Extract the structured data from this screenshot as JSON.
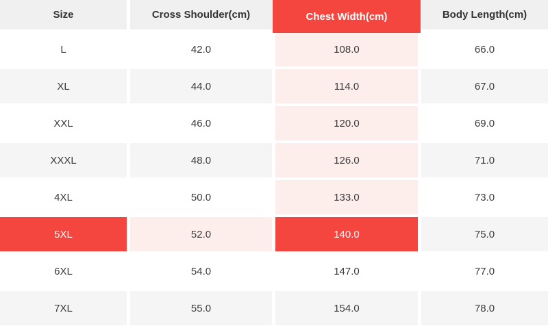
{
  "table": {
    "title": "garment-size-chart",
    "columns": [
      {
        "label": "Size",
        "state": "normal"
      },
      {
        "label": "Cross Shoulder(cm)",
        "state": "normal"
      },
      {
        "label": "Chest Width(cm)",
        "state": "selected"
      },
      {
        "label": "Body Length(cm)",
        "state": "normal"
      }
    ],
    "rows": [
      {
        "cells": [
          "L",
          "42.0",
          "108.0",
          "66.0"
        ],
        "cell_states": [
          "normal",
          "normal",
          "pink",
          "normal"
        ]
      },
      {
        "cells": [
          "XL",
          "44.0",
          "114.0",
          "67.0"
        ],
        "cell_states": [
          "normal",
          "normal",
          "pink",
          "normal"
        ]
      },
      {
        "cells": [
          "XXL",
          "46.0",
          "120.0",
          "69.0"
        ],
        "cell_states": [
          "normal",
          "normal",
          "pink",
          "normal"
        ]
      },
      {
        "cells": [
          "XXXL",
          "48.0",
          "126.0",
          "71.0"
        ],
        "cell_states": [
          "normal",
          "normal",
          "pink",
          "normal"
        ]
      },
      {
        "cells": [
          "4XL",
          "50.0",
          "133.0",
          "73.0"
        ],
        "cell_states": [
          "normal",
          "normal",
          "pink",
          "normal"
        ]
      },
      {
        "cells": [
          "5XL",
          "52.0",
          "140.0",
          "75.0"
        ],
        "cell_states": [
          "selected",
          "pink",
          "selected",
          "normal"
        ]
      },
      {
        "cells": [
          "6XL",
          "54.0",
          "147.0",
          "77.0"
        ],
        "cell_states": [
          "normal",
          "normal",
          "normal",
          "normal"
        ]
      },
      {
        "cells": [
          "7XL",
          "55.0",
          "154.0",
          "78.0"
        ],
        "cell_states": [
          "normal",
          "normal",
          "normal",
          "normal"
        ]
      }
    ],
    "selected_column": "Chest Width(cm)",
    "selected_row": "5XL"
  },
  "colors": {
    "accent_red": "#f4453f",
    "highlight_pink": "#fdeeec",
    "row_alt_gray": "#f5f5f5",
    "header_gray": "#f0f0f0",
    "text": "#3b3b3b"
  }
}
